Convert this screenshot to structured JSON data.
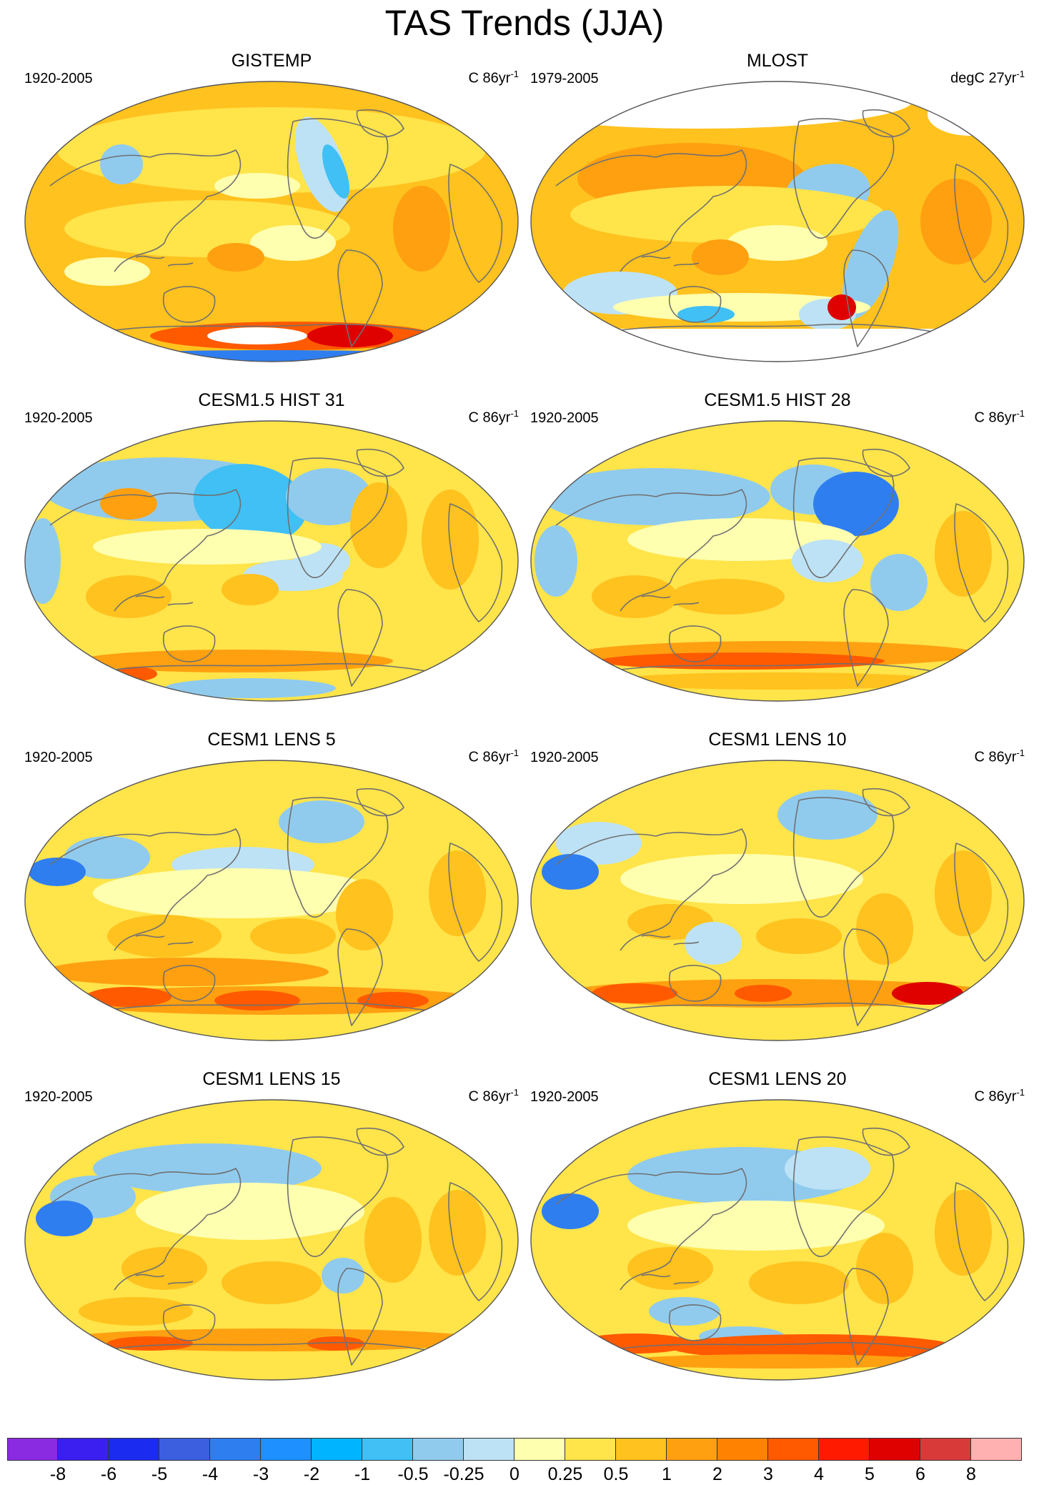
{
  "title": "TAS Trends (JJA)",
  "panels": [
    {
      "name": "GISTEMP",
      "years": "1920-2005",
      "units": "C 86yr",
      "units_sup": "-1"
    },
    {
      "name": "MLOST",
      "years": "1979-2005",
      "units": "degC 27yr",
      "units_sup": "-1"
    },
    {
      "name": "CESM1.5 HIST 31",
      "years": "1920-2005",
      "units": "C 86yr",
      "units_sup": "-1"
    },
    {
      "name": "CESM1.5 HIST 28",
      "years": "1920-2005",
      "units": "C 86yr",
      "units_sup": "-1"
    },
    {
      "name": "CESM1 LENS 5",
      "years": "1920-2005",
      "units": "C 86yr",
      "units_sup": "-1"
    },
    {
      "name": "CESM1 LENS 10",
      "years": "1920-2005",
      "units": "C 86yr",
      "units_sup": "-1"
    },
    {
      "name": "CESM1 LENS 15",
      "years": "1920-2005",
      "units": "C 86yr",
      "units_sup": "-1"
    },
    {
      "name": "CESM1 LENS 20",
      "years": "1920-2005",
      "units": "C 86yr",
      "units_sup": "-1"
    }
  ],
  "colorbar": {
    "colors": [
      "#8a2be2",
      "#3a1ff0",
      "#1b2cf0",
      "#3c5fe0",
      "#2f7ef0",
      "#1e90ff",
      "#00b4ff",
      "#40c0f5",
      "#90cbee",
      "#bde2f5",
      "#ffffb0",
      "#ffe44a",
      "#ffc21e",
      "#ffa010",
      "#ff8200",
      "#ff5a00",
      "#ff1a00",
      "#df0000",
      "#d83a3a",
      "#ffb0b0"
    ],
    "tick_labels": [
      "-8",
      "-6",
      "-5",
      "-4",
      "-3",
      "-2",
      "-1",
      "-0.5",
      "-0.25",
      "0",
      "0.25",
      "0.5",
      "1",
      "2",
      "3",
      "4",
      "5",
      "6",
      "8"
    ]
  },
  "map_colors": {
    "warm_base": "#ffc21e",
    "warm_light": "#ffe44a",
    "pale": "#ffffb0",
    "orange": "#ffa010",
    "red": "#ff5a00",
    "deep_red": "#df0000",
    "cool_light": "#bde2f5",
    "cool": "#90cbee",
    "blue": "#40c0f5",
    "deep_blue": "#2f7ef0",
    "missing": "#ffffff",
    "coast": "#707070"
  }
}
